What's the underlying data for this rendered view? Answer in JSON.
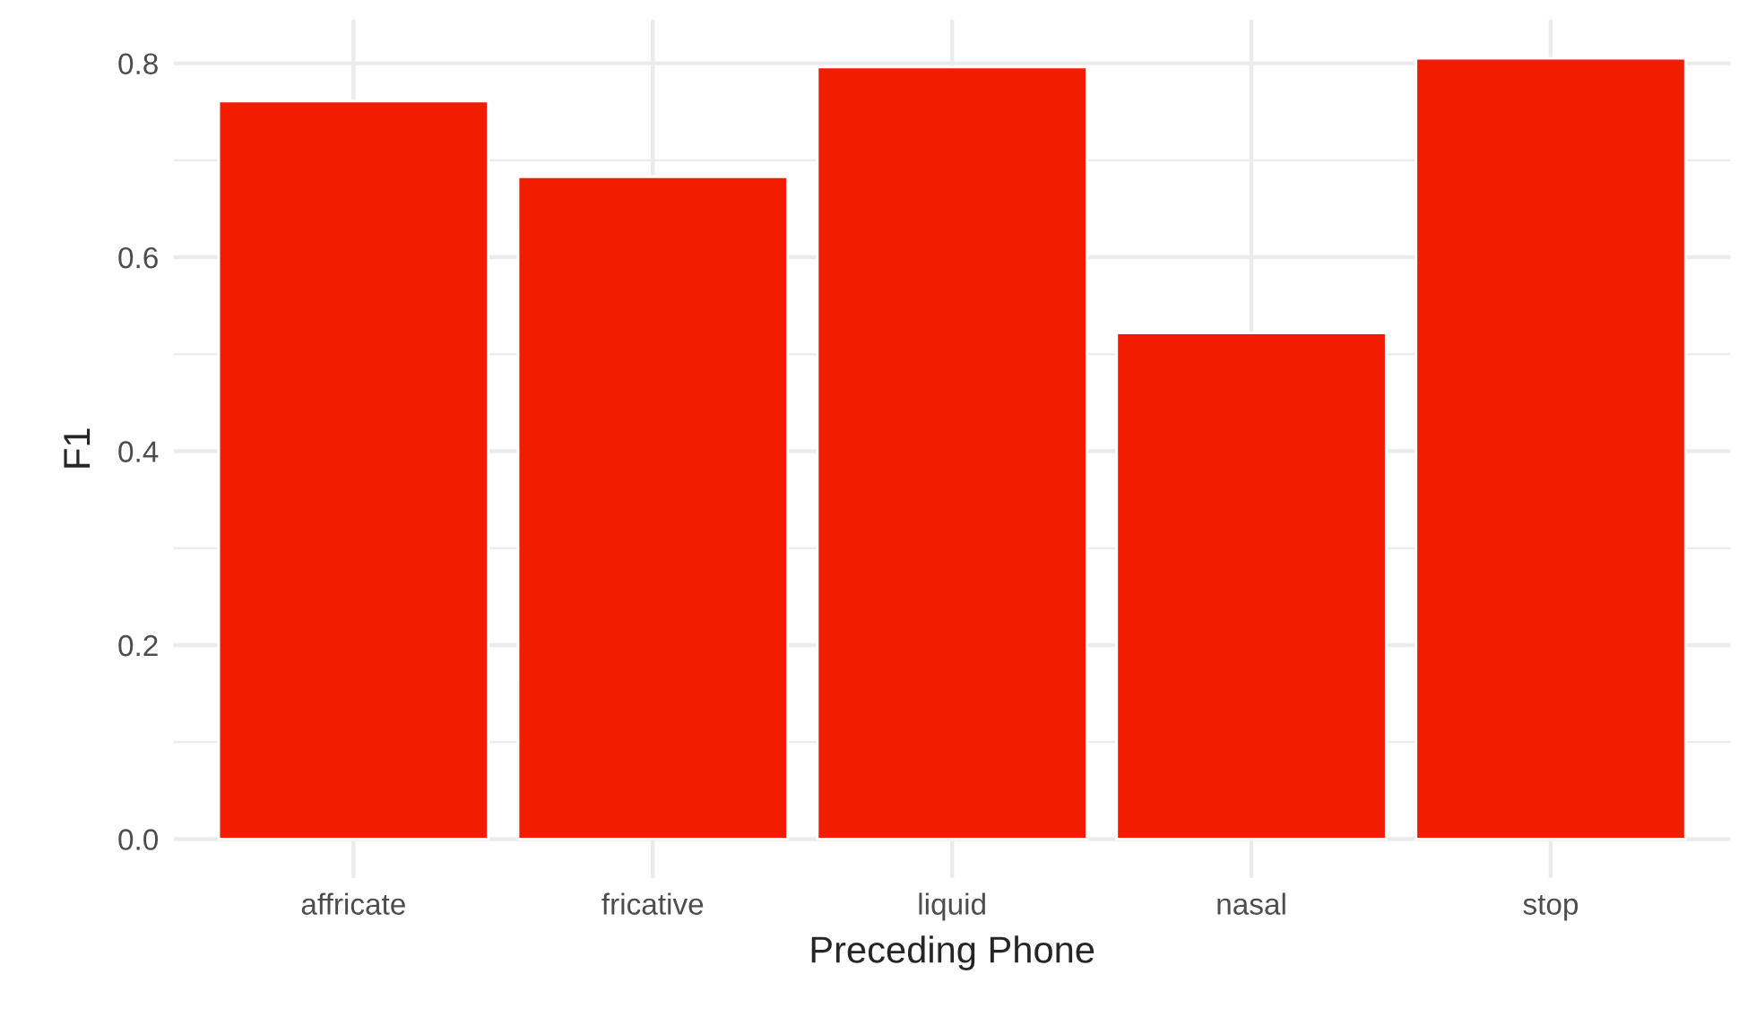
{
  "chart_data": {
    "type": "bar",
    "xlabel": "Preceding Phone",
    "ylabel": "F1",
    "categories": [
      "affricate",
      "fricative",
      "liquid",
      "nasal",
      "stop"
    ],
    "values": [
      0.761,
      0.683,
      0.796,
      0.522,
      0.805
    ],
    "color": "#f21c00",
    "ylim": [
      -0.04,
      0.845
    ],
    "yticks": [
      {
        "value": 0,
        "label": "0.0"
      },
      {
        "value": 0.1,
        "label": null
      },
      {
        "value": 0.2,
        "label": "0.2"
      },
      {
        "value": 0.3,
        "label": null
      },
      {
        "value": 0.4,
        "label": "0.4"
      },
      {
        "value": 0.5,
        "label": null
      },
      {
        "value": 0.6,
        "label": "0.6"
      },
      {
        "value": 0.7,
        "label": null
      },
      {
        "value": 0.8,
        "label": "0.8"
      }
    ],
    "grid": true,
    "legend": false
  }
}
